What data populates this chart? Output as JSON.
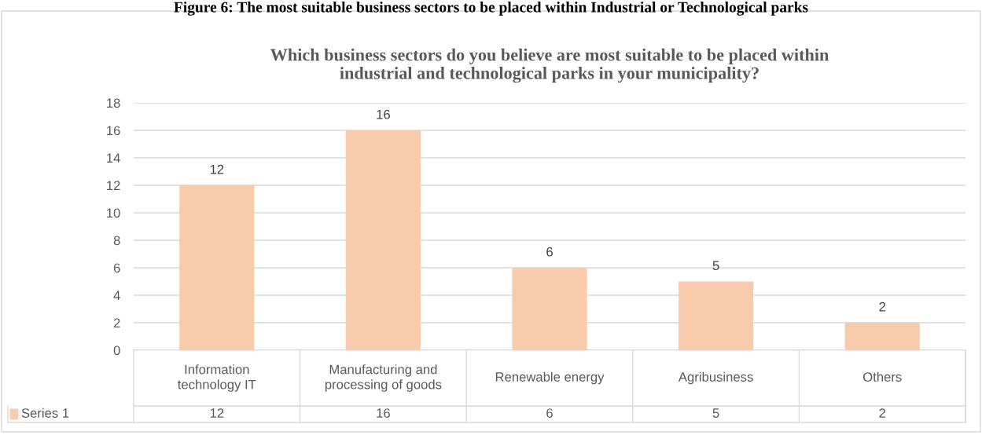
{
  "chart_data": {
    "type": "bar",
    "title": "Which business sectors do you believe are most suitable to be placed within\nindustrial and technological parks in your municipality?",
    "annotations": [
      "Figure 6: The most suitable business sectors to be placed within Industrial or Technological parks",
      "12",
      "16",
      "6",
      "5",
      "2"
    ],
    "categories": [
      "Information\ntechnology IT",
      "Manufacturing and\nprocessing of goods",
      "Renewable energy",
      "Agribusiness",
      "Others"
    ],
    "series": [
      {
        "name": "Series 1",
        "color": "#f8cbad",
        "values": [
          12,
          16,
          6,
          5,
          2
        ],
        "value_labels": [
          "12",
          "16",
          "6",
          "5",
          "2"
        ]
      }
    ],
    "ylim": [
      0,
      18
    ],
    "yticks": [
      0,
      2,
      4,
      6,
      8,
      10,
      12,
      14,
      16,
      18
    ],
    "grid": "y",
    "data_labels": true
  }
}
